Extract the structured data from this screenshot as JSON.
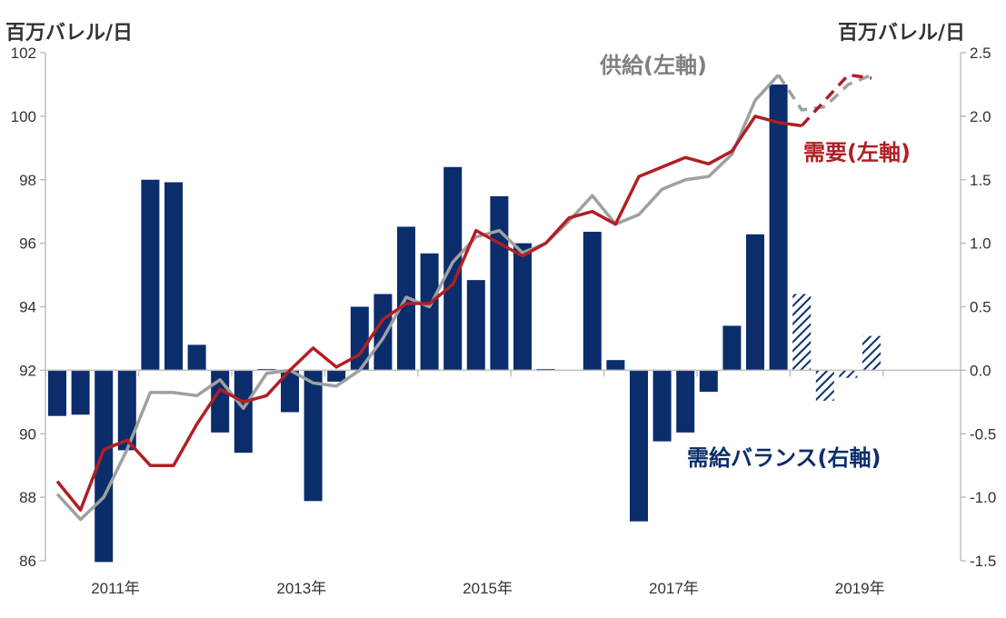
{
  "chart_data": {
    "type": "bar+line",
    "left_axis": {
      "title": "百万バレル/日",
      "min": 86,
      "max": 102,
      "ticks": [
        "86",
        "88",
        "90",
        "92",
        "94",
        "96",
        "98",
        "100",
        "102"
      ]
    },
    "right_axis": {
      "title": "百万バレル/日",
      "min": -1.5,
      "max": 2.5,
      "ticks": [
        "-1.5",
        "-1.0",
        "-0.5",
        "0.0",
        "0.5",
        "1.0",
        "1.5",
        "2.0",
        "2.5"
      ]
    },
    "x_labels": [
      {
        "label": "2011年",
        "q": 1
      },
      {
        "label": "2013年",
        "q": 9
      },
      {
        "label": "2015年",
        "q": 17
      },
      {
        "label": "2017年",
        "q": 25
      },
      {
        "label": "2019年",
        "q": 33
      }
    ],
    "quarters": 38,
    "series": [
      {
        "name": "需給バランス(右軸)",
        "kind": "bar",
        "axis": "right",
        "color": "#0b2d6b",
        "values": [
          -0.36,
          -0.35,
          -1.51,
          -0.63,
          1.5,
          1.48,
          0.2,
          -0.49,
          -0.65,
          0.01,
          -0.33,
          -1.03,
          -0.09,
          0.5,
          0.6,
          1.13,
          0.92,
          1.6,
          0.71,
          1.37,
          1.0,
          0.01,
          null,
          1.09,
          0.08,
          -1.19,
          -0.56,
          -0.49,
          -0.17,
          0.35,
          1.07,
          2.25
        ],
        "forecast_values": [
          null,
          null,
          null,
          null,
          null,
          null,
          null,
          null,
          null,
          null,
          null,
          null,
          null,
          null,
          null,
          null,
          null,
          null,
          null,
          null,
          null,
          null,
          null,
          null,
          null,
          null,
          null,
          null,
          null,
          null,
          null,
          null,
          0.6,
          -0.24,
          -0.06,
          0.27
        ]
      },
      {
        "name": "供給(左軸)",
        "kind": "line",
        "axis": "left",
        "color": "#a0a0a0",
        "values": [
          88.1,
          87.3,
          88.0,
          89.5,
          91.3,
          91.3,
          91.2,
          91.7,
          90.8,
          91.9,
          92.0,
          91.6,
          91.5,
          92.0,
          93.0,
          94.3,
          94.0,
          95.4,
          96.2,
          96.4,
          95.7,
          96.0,
          96.7,
          97.5,
          96.6,
          96.9,
          97.7,
          98.0,
          98.1,
          98.8,
          100.5,
          101.3
        ],
        "forecast_values": [
          null,
          null,
          null,
          null,
          null,
          null,
          null,
          null,
          null,
          null,
          null,
          null,
          null,
          null,
          null,
          null,
          null,
          null,
          null,
          null,
          null,
          null,
          null,
          null,
          null,
          null,
          null,
          null,
          null,
          null,
          null,
          101.3,
          100.2,
          100.3,
          101.0,
          101.3
        ]
      },
      {
        "name": "需要(左軸)",
        "kind": "line",
        "axis": "left",
        "color": "#b01f24",
        "values": [
          88.5,
          87.6,
          89.5,
          89.8,
          89.0,
          89.0,
          90.3,
          91.4,
          91.0,
          91.2,
          92.0,
          92.7,
          92.1,
          92.5,
          93.6,
          94.1,
          94.1,
          94.7,
          96.4,
          96.0,
          95.6,
          96.0,
          96.8,
          97.0,
          96.6,
          98.1,
          98.4,
          98.7,
          98.5,
          98.9,
          100.0,
          99.8,
          99.7
        ],
        "forecast_values": [
          null,
          null,
          null,
          null,
          null,
          null,
          null,
          null,
          null,
          null,
          null,
          null,
          null,
          null,
          null,
          null,
          null,
          null,
          null,
          null,
          null,
          null,
          null,
          null,
          null,
          null,
          null,
          null,
          null,
          null,
          null,
          null,
          99.7,
          100.5,
          101.3,
          101.2
        ]
      }
    ],
    "grid": false
  },
  "labels": {
    "left_axis_title": "百万バレル/日",
    "right_axis_title": "百万バレル/日",
    "supply": "供給(左軸)",
    "demand": "需要(左軸)",
    "balance": "需給バランス(右軸)"
  }
}
